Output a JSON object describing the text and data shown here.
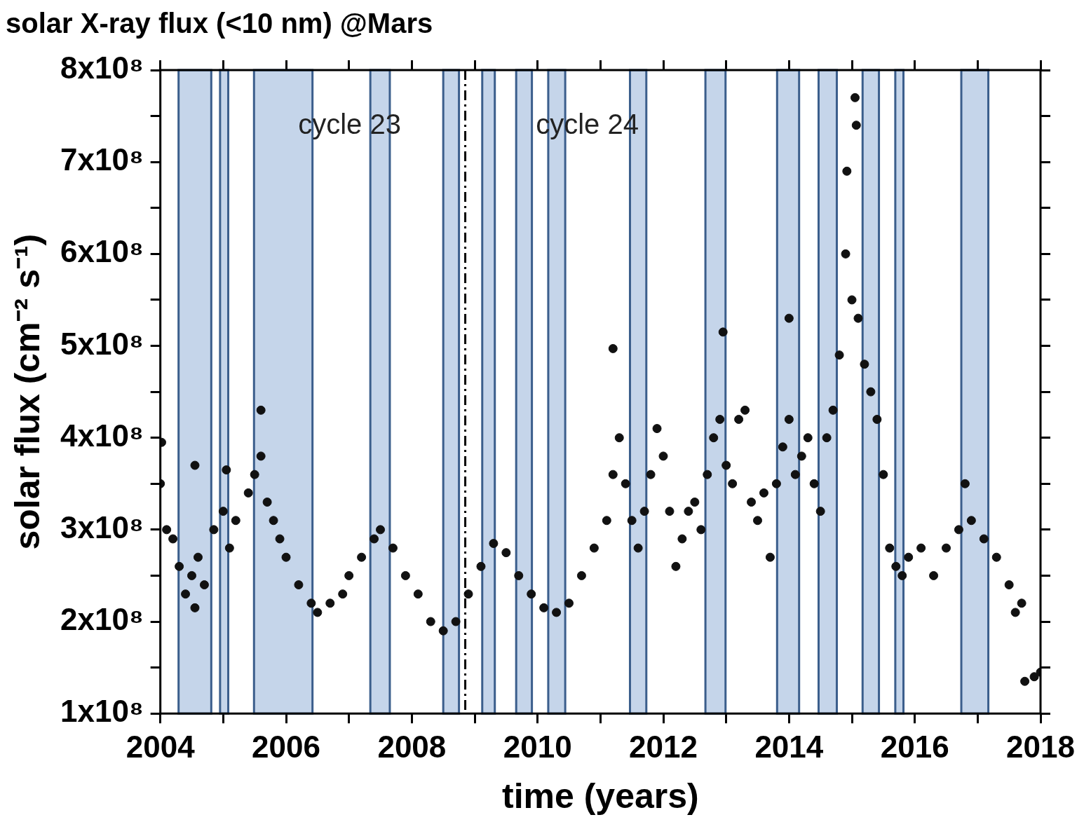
{
  "chart_data": {
    "type": "scatter",
    "title": "solar X-ray flux (<10 nm) @Mars",
    "xlabel": "time (years)",
    "ylabel": "solar flux (cm⁻² s⁻¹)",
    "xlim": [
      2004,
      2018
    ],
    "xticks": [
      2004,
      {
        "value": 2005,
        "label": null
      },
      2006,
      {
        "value": 2007,
        "label": null
      },
      2008,
      {
        "value": 2009,
        "label": null
      },
      2010,
      {
        "value": 2011,
        "label": null
      },
      2012,
      {
        "value": 2013,
        "label": null
      },
      2014,
      {
        "value": 2015,
        "label": null
      },
      2016,
      {
        "value": 2017,
        "label": null
      },
      2018
    ],
    "ylim": [
      100000000,
      800000000
    ],
    "yticks": [
      {
        "value": 100000000,
        "label": "1x10⁸"
      },
      {
        "value": 150000000,
        "label": null
      },
      {
        "value": 200000000,
        "label": "2x10⁸"
      },
      {
        "value": 250000000,
        "label": null
      },
      {
        "value": 300000000,
        "label": "3x10⁸"
      },
      {
        "value": 350000000,
        "label": null
      },
      {
        "value": 400000000,
        "label": "4x10⁸"
      },
      {
        "value": 450000000,
        "label": null
      },
      {
        "value": 500000000,
        "label": "5x10⁸"
      },
      {
        "value": 550000000,
        "label": null
      },
      {
        "value": 600000000,
        "label": "6x10⁸"
      },
      {
        "value": 650000000,
        "label": null
      },
      {
        "value": 700000000,
        "label": "7x10⁸"
      },
      {
        "value": 750000000,
        "label": null
      },
      {
        "value": 800000000,
        "label": "8x10⁸"
      }
    ],
    "marker": "circle",
    "series": [
      {
        "color": "#111111",
        "x": [
          2004.0,
          2004.02,
          2004.1,
          2004.2,
          2004.3,
          2004.4,
          2004.5,
          2004.55,
          2004.55,
          2004.6,
          2004.7,
          2004.85,
          2005.0,
          2005.05,
          2005.1,
          2005.2,
          2005.4,
          2005.5,
          2005.6,
          2005.6,
          2005.7,
          2005.8,
          2005.9,
          2006.0,
          2006.2,
          2006.4,
          2006.5,
          2006.7,
          2006.9,
          2007.0,
          2007.2,
          2007.4,
          2007.5,
          2007.7,
          2007.9,
          2008.1,
          2008.3,
          2008.5,
          2008.7,
          2008.9,
          2009.1,
          2009.3,
          2009.5,
          2009.7,
          2009.9,
          2010.1,
          2010.3,
          2010.5,
          2010.7,
          2010.9,
          2011.1,
          2011.2,
          2011.2,
          2011.3,
          2011.4,
          2011.5,
          2011.6,
          2011.7,
          2011.8,
          2011.9,
          2012.0,
          2012.1,
          2012.2,
          2012.3,
          2012.4,
          2012.5,
          2012.6,
          2012.7,
          2012.8,
          2012.9,
          2012.95,
          2013.0,
          2013.1,
          2013.2,
          2013.3,
          2013.4,
          2013.5,
          2013.6,
          2013.7,
          2013.8,
          2013.9,
          2014.0,
          2014.0,
          2014.1,
          2014.2,
          2014.3,
          2014.4,
          2014.5,
          2014.6,
          2014.7,
          2014.8,
          2014.9,
          2014.92,
          2015.0,
          2015.05,
          2015.07,
          2015.1,
          2015.2,
          2015.3,
          2015.4,
          2015.5,
          2015.6,
          2015.7,
          2015.8,
          2015.9,
          2016.1,
          2016.3,
          2016.5,
          2016.7,
          2016.8,
          2016.9,
          2017.1,
          2017.3,
          2017.5,
          2017.6,
          2017.7,
          2017.75,
          2017.9,
          2018.0
        ],
        "values": [
          350000000,
          395000000,
          300000000,
          290000000,
          260000000,
          230000000,
          250000000,
          370000000,
          215000000,
          270000000,
          240000000,
          300000000,
          320000000,
          365000000,
          280000000,
          310000000,
          340000000,
          360000000,
          380000000,
          430000000,
          330000000,
          310000000,
          290000000,
          270000000,
          240000000,
          220000000,
          210000000,
          220000000,
          230000000,
          250000000,
          270000000,
          290000000,
          300000000,
          280000000,
          250000000,
          230000000,
          200000000,
          190000000,
          200000000,
          230000000,
          260000000,
          285000000,
          275000000,
          250000000,
          230000000,
          215000000,
          210000000,
          220000000,
          250000000,
          280000000,
          310000000,
          360000000,
          497000000,
          400000000,
          350000000,
          310000000,
          280000000,
          320000000,
          360000000,
          410000000,
          380000000,
          320000000,
          260000000,
          290000000,
          320000000,
          330000000,
          300000000,
          360000000,
          400000000,
          420000000,
          515000000,
          370000000,
          350000000,
          420000000,
          430000000,
          330000000,
          310000000,
          340000000,
          270000000,
          350000000,
          390000000,
          420000000,
          530000000,
          360000000,
          380000000,
          400000000,
          350000000,
          320000000,
          400000000,
          430000000,
          490000000,
          600000000,
          690000000,
          550000000,
          770000000,
          740000000,
          530000000,
          480000000,
          450000000,
          420000000,
          360000000,
          280000000,
          260000000,
          250000000,
          270000000,
          280000000,
          250000000,
          280000000,
          300000000,
          350000000,
          310000000,
          290000000,
          270000000,
          240000000,
          210000000,
          220000000,
          135000000,
          140000000,
          145000000
        ]
      }
    ],
    "bands": [
      {
        "axis": "x",
        "from": 2004.29,
        "to": 2004.81,
        "color": "#c5d5ea"
      },
      {
        "axis": "x",
        "from": 2004.95,
        "to": 2005.08,
        "color": "#c5d5ea"
      },
      {
        "axis": "x",
        "from": 2005.49,
        "to": 2006.42,
        "color": "#c5d5ea"
      },
      {
        "axis": "x",
        "from": 2007.34,
        "to": 2007.65,
        "color": "#c5d5ea"
      },
      {
        "axis": "x",
        "from": 2008.5,
        "to": 2008.75,
        "color": "#c5d5ea"
      },
      {
        "axis": "x",
        "from": 2009.12,
        "to": 2009.32,
        "color": "#c5d5ea"
      },
      {
        "axis": "x",
        "from": 2009.66,
        "to": 2009.91,
        "color": "#c5d5ea"
      },
      {
        "axis": "x",
        "from": 2010.17,
        "to": 2010.44,
        "color": "#c5d5ea"
      },
      {
        "axis": "x",
        "from": 2011.47,
        "to": 2011.73,
        "color": "#c5d5ea"
      },
      {
        "axis": "x",
        "from": 2012.67,
        "to": 2012.99,
        "color": "#c5d5ea"
      },
      {
        "axis": "x",
        "from": 2013.81,
        "to": 2014.16,
        "color": "#c5d5ea"
      },
      {
        "axis": "x",
        "from": 2014.47,
        "to": 2014.76,
        "color": "#c5d5ea"
      },
      {
        "axis": "x",
        "from": 2015.17,
        "to": 2015.43,
        "color": "#c5d5ea"
      },
      {
        "axis": "x",
        "from": 2015.69,
        "to": 2015.82,
        "color": "#c5d5ea"
      },
      {
        "axis": "x",
        "from": 2016.74,
        "to": 2017.17,
        "color": "#c5d5ea"
      }
    ],
    "ref_lines": [
      {
        "axis": "x",
        "value": 2008.85,
        "color": "#000000",
        "line_style": "dashdot"
      }
    ],
    "annotations": [
      "cycle 23",
      "cycle 24"
    ]
  }
}
